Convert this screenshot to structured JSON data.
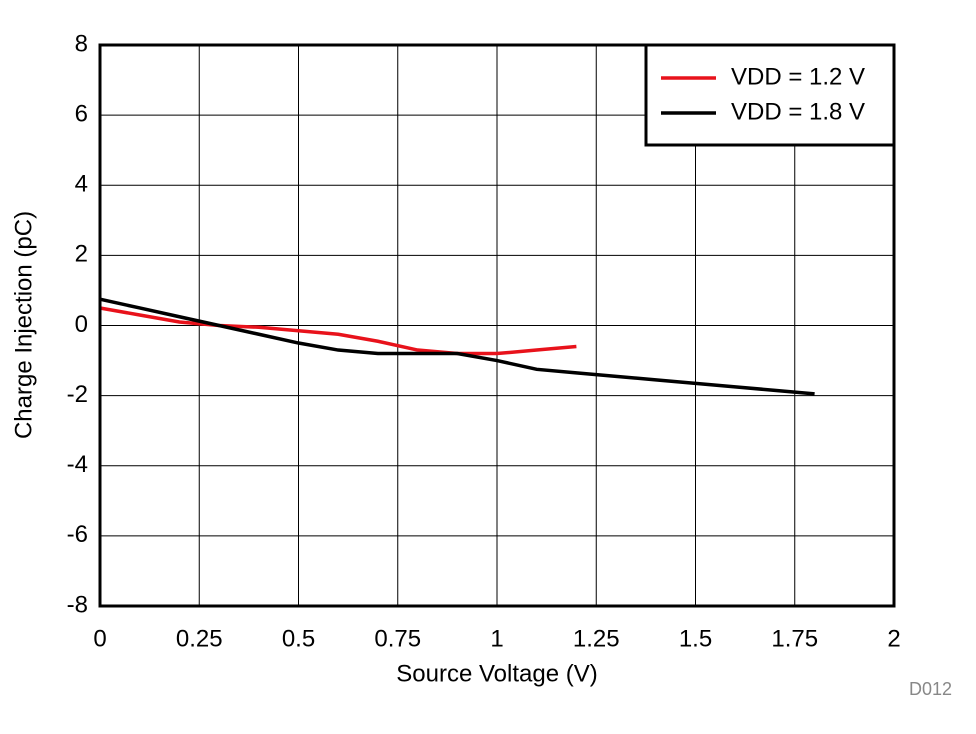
{
  "chart_data": {
    "type": "line",
    "x_label": "Source Voltage (V)",
    "y_label": "Charge Injection (pC)",
    "annotation": "D012",
    "xlim": [
      0,
      2
    ],
    "xticks": [
      0,
      0.25,
      0.5,
      0.75,
      1,
      1.25,
      1.5,
      1.75,
      2
    ],
    "ylim": [
      -8,
      8
    ],
    "yticks": [
      -8,
      -6,
      -4,
      -2,
      0,
      2,
      4,
      6,
      8
    ],
    "grid": true,
    "legend": "top-right",
    "series": [
      {
        "name": "VDD = 1.2 V",
        "color": "#e8121b",
        "x": [
          0,
          0.1,
          0.2,
          0.3,
          0.4,
          0.5,
          0.6,
          0.7,
          0.8,
          0.9,
          1.0,
          1.1,
          1.2
        ],
        "values": [
          0.5,
          0.3,
          0.1,
          0,
          -0.05,
          -0.15,
          -0.25,
          -0.45,
          -0.7,
          -0.8,
          -0.8,
          -0.7,
          -0.6
        ]
      },
      {
        "name": "VDD = 1.8 V",
        "color": "#000000",
        "x": [
          0,
          0.1,
          0.2,
          0.3,
          0.4,
          0.5,
          0.6,
          0.7,
          0.8,
          0.9,
          1.0,
          1.1,
          1.2,
          1.3,
          1.4,
          1.5,
          1.6,
          1.7,
          1.8
        ],
        "values": [
          0.75,
          0.5,
          0.25,
          0,
          -0.25,
          -0.5,
          -0.7,
          -0.8,
          -0.8,
          -0.8,
          -1.0,
          -1.25,
          -1.35,
          -1.45,
          -1.55,
          -1.65,
          -1.75,
          -1.85,
          -1.95
        ]
      }
    ]
  }
}
